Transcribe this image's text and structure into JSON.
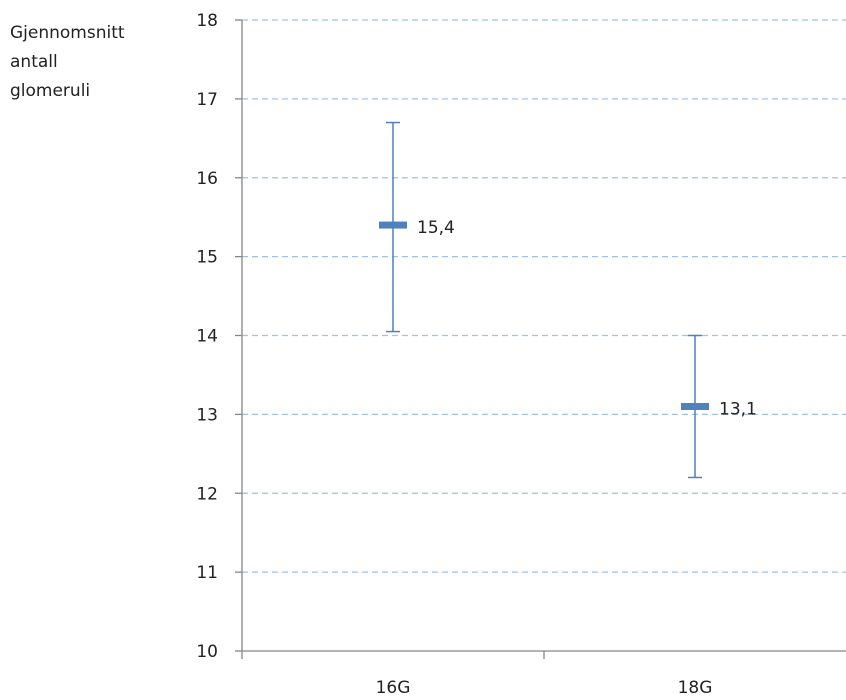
{
  "chart_data": {
    "type": "scatter",
    "title": "",
    "xlabel": "",
    "ylabel": "Gjennomsnitt\nantall\nglomeruli",
    "categories": [
      "16G",
      "18G"
    ],
    "series": [
      {
        "values": [
          15.4,
          13.1
        ],
        "labels": [
          "15,4",
          "13,1"
        ],
        "error_low": [
          14.05,
          12.2
        ],
        "error_high": [
          16.7,
          14.0
        ]
      }
    ],
    "ylim": [
      10,
      18
    ],
    "yticks": [
      10,
      11,
      12,
      13,
      14,
      15,
      16,
      17,
      18
    ],
    "grid": true,
    "legend": "none",
    "colors": {
      "marker": "#4f81bd",
      "gridline": "#9dc3e6",
      "axis": "#868686"
    }
  }
}
